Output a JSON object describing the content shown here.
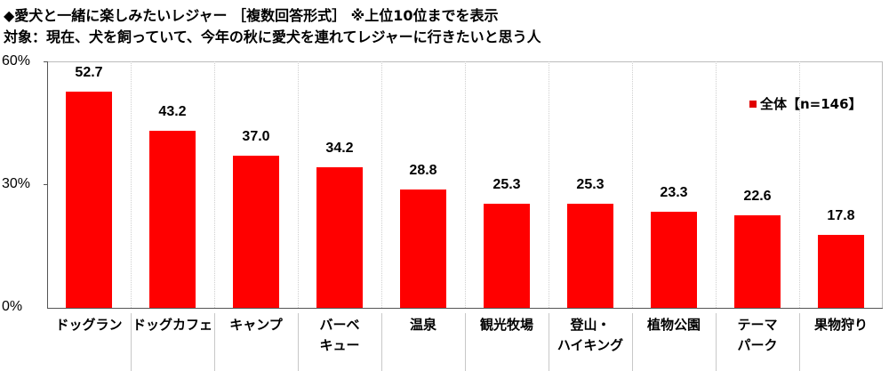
{
  "header": {
    "title": "◆愛犬と一緒に楽しみたいレジャー ［複数回答形式］ ※上位10位までを表示",
    "subtitle": "対象：現在、犬を飼っていて、今年の秋に愛犬を連れてレジャーに行きたいと思う人"
  },
  "legend": {
    "label": "全体【n=146】",
    "color": "#ff0000"
  },
  "y_ticks": [
    "60%",
    "30%",
    "0%"
  ],
  "chart_data": {
    "type": "bar",
    "title": "◆愛犬と一緒に楽しみたいレジャー ［複数回答形式］ ※上位10位までを表示",
    "subtitle": "対象：現在、犬を飼っていて、今年の秋に愛犬を連れてレジャーに行きたいと思う人",
    "xlabel": "",
    "ylabel": "",
    "ylim": [
      0,
      60
    ],
    "yticks": [
      0,
      30,
      60
    ],
    "ytick_labels": [
      "0%",
      "30%",
      "60%"
    ],
    "grid": "vertical dotted separators",
    "legend_position": "upper right",
    "categories": [
      "ドッグラン",
      "ドッグカフェ",
      "キャンプ",
      "バーベキュー",
      "温泉",
      "観光牧場",
      "登山・ハイキング",
      "植物公園",
      "テーマパーク",
      "果物狩り"
    ],
    "category_display": [
      "ドッグラン",
      "ドッグカフェ",
      "キャンプ",
      "バーベ\nキュー",
      "温泉",
      "観光牧場",
      "登山・\nハイキング",
      "植物公園",
      "テーマ\nパーク",
      "果物狩り"
    ],
    "series": [
      {
        "name": "全体【n=146】",
        "color": "#ff0000",
        "values": [
          52.7,
          43.2,
          37.0,
          34.2,
          28.8,
          25.3,
          25.3,
          23.3,
          22.6,
          17.8
        ],
        "labels": [
          "52.7",
          "43.2",
          "37.0",
          "34.2",
          "28.8",
          "25.3",
          "25.3",
          "23.3",
          "22.6",
          "17.8"
        ]
      }
    ]
  }
}
